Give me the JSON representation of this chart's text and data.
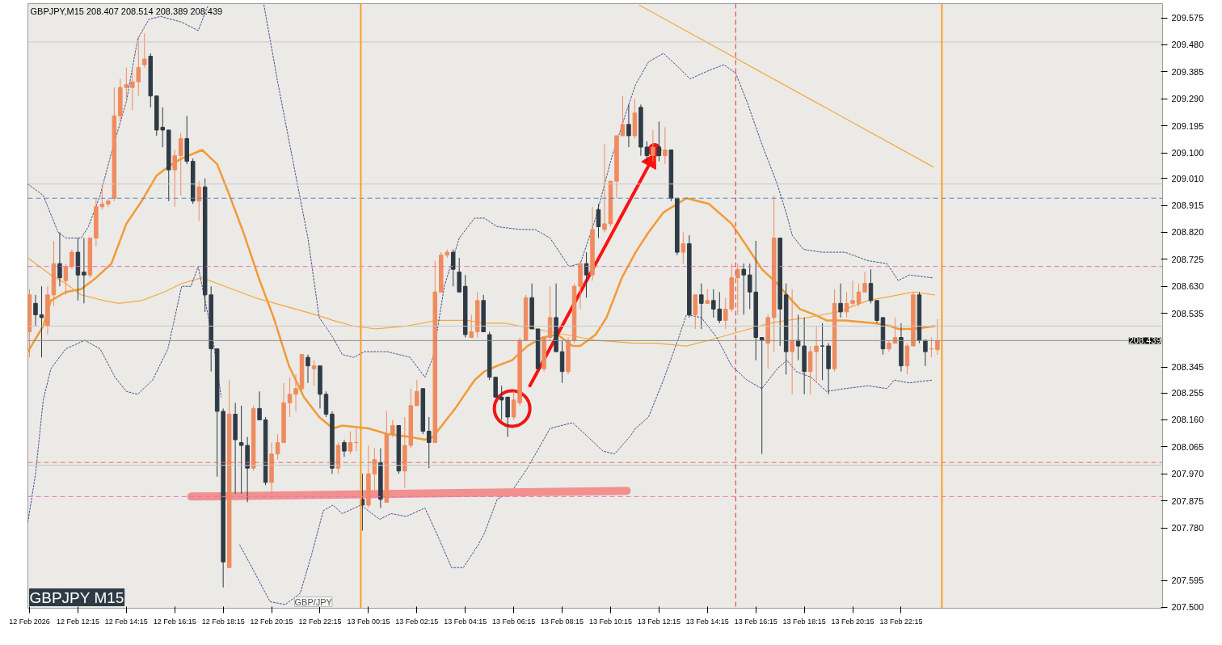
{
  "chart_data": {
    "type": "candlestick",
    "title": "GBPJPY,M15 208.407 208.514 208.389 208.439",
    "annotations": [
      "GBPJPY M15",
      "GBP/JPY"
    ],
    "grid": false,
    "xlim": [
      "2026-02-12T10:11",
      "2026-02-14T09:03"
    ],
    "ylim": [
      207.497,
      209.625
    ],
    "xticks": [
      {
        "value": "2026-02-12T10:15",
        "label": "12 Feb 2026"
      },
      {
        "value": "2026-02-12T12:15",
        "label": "12 Feb 12:15"
      },
      {
        "value": "2026-02-12T14:15",
        "label": "12 Feb 14:15"
      },
      {
        "value": "2026-02-12T16:15",
        "label": "12 Feb 16:15"
      },
      {
        "value": "2026-02-12T18:15",
        "label": "12 Feb 18:15"
      },
      {
        "value": "2026-02-12T20:15",
        "label": "12 Feb 20:15"
      },
      {
        "value": "2026-02-12T22:15",
        "label": "12 Feb 22:15"
      },
      {
        "value": "2026-02-13T00:15",
        "label": "13 Feb 00:15"
      },
      {
        "value": "2026-02-13T02:15",
        "label": "13 Feb 02:15"
      },
      {
        "value": "2026-02-13T04:15",
        "label": "13 Feb 04:15"
      },
      {
        "value": "2026-02-13T06:15",
        "label": "13 Feb 06:15"
      },
      {
        "value": "2026-02-13T08:15",
        "label": "13 Feb 08:15"
      },
      {
        "value": "2026-02-13T10:15",
        "label": "13 Feb 10:15"
      },
      {
        "value": "2026-02-13T12:15",
        "label": "13 Feb 12:15"
      },
      {
        "value": "2026-02-13T14:15",
        "label": "13 Feb 14:15"
      },
      {
        "value": "2026-02-13T16:15",
        "label": "13 Feb 16:15"
      },
      {
        "value": "2026-02-13T18:15",
        "label": "13 Feb 18:15"
      },
      {
        "value": "2026-02-13T20:15",
        "label": "13 Feb 20:15"
      },
      {
        "value": "2026-02-13T22:15",
        "label": "13 Feb 22:15"
      }
    ],
    "yticks": [
      {
        "value": 209.575,
        "label": "209.575"
      },
      {
        "value": 209.48,
        "label": "209.480"
      },
      {
        "value": 209.385,
        "label": "209.385"
      },
      {
        "value": 209.29,
        "label": "209.290"
      },
      {
        "value": 209.195,
        "label": "209.195"
      },
      {
        "value": 209.1,
        "label": "209.100"
      },
      {
        "value": 209.01,
        "label": "209.010"
      },
      {
        "value": 208.915,
        "label": "208.915"
      },
      {
        "value": 208.82,
        "label": "208.820"
      },
      {
        "value": 208.725,
        "label": "208.725"
      },
      {
        "value": 208.63,
        "label": "208.630"
      },
      {
        "value": 208.535,
        "label": "208.535"
      },
      {
        "value": 208.345,
        "label": "208.345"
      },
      {
        "value": 208.255,
        "label": "208.255"
      },
      {
        "value": 208.16,
        "label": "208.160"
      },
      {
        "value": 208.065,
        "label": "208.065"
      },
      {
        "value": 207.97,
        "label": "207.970"
      },
      {
        "value": 207.875,
        "label": "207.875"
      },
      {
        "value": 207.78,
        "label": "207.780"
      },
      {
        "value": 207.595,
        "label": "207.595"
      },
      {
        "value": 207.5,
        "label": "207.500"
      }
    ],
    "x": [
      "2026-02-12T10:15",
      "2026-02-12T10:30",
      "2026-02-12T10:45",
      "2026-02-12T11:00",
      "2026-02-12T11:15",
      "2026-02-12T11:30",
      "2026-02-12T11:45",
      "2026-02-12T12:00",
      "2026-02-12T12:15",
      "2026-02-12T12:30",
      "2026-02-12T12:45",
      "2026-02-12T13:00",
      "2026-02-12T13:15",
      "2026-02-12T13:30",
      "2026-02-12T13:45",
      "2026-02-12T14:00",
      "2026-02-12T14:15",
      "2026-02-12T14:30",
      "2026-02-12T14:45",
      "2026-02-12T15:00",
      "2026-02-12T15:15",
      "2026-02-12T15:30",
      "2026-02-12T15:45",
      "2026-02-12T16:00",
      "2026-02-12T16:15",
      "2026-02-12T16:30",
      "2026-02-12T16:45",
      "2026-02-12T17:00",
      "2026-02-12T17:15",
      "2026-02-12T17:30",
      "2026-02-12T17:45",
      "2026-02-12T18:00",
      "2026-02-12T18:15",
      "2026-02-12T18:30",
      "2026-02-12T18:45",
      "2026-02-12T19:00",
      "2026-02-12T19:15",
      "2026-02-12T19:30",
      "2026-02-12T19:45",
      "2026-02-12T20:00",
      "2026-02-12T20:15",
      "2026-02-12T20:30",
      "2026-02-12T20:45",
      "2026-02-12T21:00",
      "2026-02-12T21:15",
      "2026-02-12T21:30",
      "2026-02-12T21:45",
      "2026-02-12T22:00",
      "2026-02-12T22:15",
      "2026-02-12T22:30",
      "2026-02-12T22:45",
      "2026-02-12T23:00",
      "2026-02-12T23:15",
      "2026-02-12T23:30",
      "2026-02-12T23:45",
      "2026-02-13T00:00",
      "2026-02-13T00:15",
      "2026-02-13T00:30",
      "2026-02-13T00:45",
      "2026-02-13T01:00",
      "2026-02-13T01:15",
      "2026-02-13T01:30",
      "2026-02-13T01:45",
      "2026-02-13T02:00",
      "2026-02-13T02:15",
      "2026-02-13T02:30",
      "2026-02-13T02:45",
      "2026-02-13T03:00",
      "2026-02-13T03:15",
      "2026-02-13T03:30",
      "2026-02-13T03:45",
      "2026-02-13T04:00",
      "2026-02-13T04:15",
      "2026-02-13T04:30",
      "2026-02-13T04:45",
      "2026-02-13T05:00",
      "2026-02-13T05:15",
      "2026-02-13T05:30",
      "2026-02-13T05:45",
      "2026-02-13T06:00",
      "2026-02-13T06:15",
      "2026-02-13T06:30",
      "2026-02-13T06:45",
      "2026-02-13T07:00",
      "2026-02-13T07:15",
      "2026-02-13T07:30",
      "2026-02-13T07:45",
      "2026-02-13T08:00",
      "2026-02-13T08:15",
      "2026-02-13T08:30",
      "2026-02-13T08:45",
      "2026-02-13T09:00",
      "2026-02-13T09:15",
      "2026-02-13T09:30",
      "2026-02-13T09:45",
      "2026-02-13T10:00",
      "2026-02-13T10:15",
      "2026-02-13T10:30",
      "2026-02-13T10:45",
      "2026-02-13T11:00",
      "2026-02-13T11:15",
      "2026-02-13T11:30",
      "2026-02-13T11:45",
      "2026-02-13T12:00",
      "2026-02-13T12:15",
      "2026-02-13T12:30",
      "2026-02-13T12:45",
      "2026-02-13T13:00",
      "2026-02-13T13:15",
      "2026-02-13T13:30",
      "2026-02-13T13:45",
      "2026-02-13T14:00",
      "2026-02-13T14:15",
      "2026-02-13T14:30",
      "2026-02-13T14:45",
      "2026-02-13T15:00",
      "2026-02-13T15:15",
      "2026-02-13T15:30",
      "2026-02-13T15:45",
      "2026-02-13T16:00",
      "2026-02-13T16:15",
      "2026-02-13T16:30",
      "2026-02-13T16:45",
      "2026-02-13T17:00",
      "2026-02-13T17:15",
      "2026-02-13T17:30",
      "2026-02-13T17:45",
      "2026-02-13T18:00",
      "2026-02-13T18:15",
      "2026-02-13T18:30",
      "2026-02-13T18:45",
      "2026-02-13T19:00",
      "2026-02-13T19:15",
      "2026-02-13T19:30",
      "2026-02-13T19:45",
      "2026-02-13T20:00",
      "2026-02-13T20:15",
      "2026-02-13T20:30",
      "2026-02-13T20:45",
      "2026-02-13T21:00",
      "2026-02-13T21:15",
      "2026-02-13T21:30",
      "2026-02-13T21:45",
      "2026-02-13T22:00",
      "2026-02-13T22:15",
      "2026-02-13T22:30",
      "2026-02-13T22:45",
      "2026-02-13T23:00",
      "2026-02-13T23:15",
      "2026-02-13T23:30",
      "2026-02-13T23:45"
    ],
    "colors": [
      "#ef8b5e",
      "#2e3a45",
      "#2e3a45",
      "#ef8b5e",
      "#ef8b5e",
      "#2e3a45",
      "#ef8b5e",
      "#ef8b5e",
      "#2e3a45",
      "#2e3a45",
      "#ef8b5e",
      "#ef8b5e",
      "#ef8b5e",
      "#ef8b5e",
      "#ef8b5e",
      "#ef8b5e",
      "#ef8b5e",
      "#ef8b5e",
      "#ef8b5e",
      "#ef8b5e",
      "#2e3a45",
      "#2e3a45",
      "#2e3a45",
      "#2e3a45",
      "#ef8b5e",
      "#ef8b5e",
      "#2e3a45",
      "#2e3a45",
      "#ef8b5e",
      "#2e3a45",
      "#2e3a45",
      "#2e3a45",
      "#2e3a45",
      "#ef8b5e",
      "#2e3a45",
      "#2e3a45",
      "#2e3a45",
      "#ef8b5e",
      "#2e3a45",
      "#2e3a45",
      "#ef8b5e",
      "#ef8b5e",
      "#ef8b5e",
      "#ef8b5e",
      "#ef8b5e",
      "#ef8b5e",
      "#2e3a45",
      "#ef8b5e",
      "#2e3a45",
      "#2e3a45",
      "#2e3a45",
      "#ef8b5e",
      "#2e3a45",
      "#ef8b5e",
      "#ef8b5e",
      "#2e3a45",
      "#ef8b5e",
      "#ef8b5e",
      "#2e3a45",
      "#ef8b5e",
      "#ef8b5e",
      "#2e3a45",
      "#ef8b5e",
      "#ef8b5e",
      "#ef8b5e",
      "#2e3a45",
      "#2e3a45",
      "#ef8b5e",
      "#ef8b5e",
      "#ef8b5e",
      "#2e3a45",
      "#2e3a45",
      "#2e3a45",
      "#ef8b5e",
      "#ef8b5e",
      "#2e3a45",
      "#2e3a45",
      "#2e3a45",
      "#2e3a45",
      "#2e3a45",
      "#ef8b5e",
      "#ef8b5e",
      "#ef8b5e",
      "#2e3a45",
      "#2e3a45",
      "#ef8b5e",
      "#ef8b5e",
      "#2e3a45",
      "#2e3a45",
      "#ef8b5e",
      "#ef8b5e",
      "#ef8b5e",
      "#2e3a45",
      "#ef8b5e",
      "#2e3a45",
      "#ef8b5e",
      "#ef8b5e",
      "#ef8b5e",
      "#ef8b5e",
      "#2e3a45",
      "#ef8b5e",
      "#2e3a45",
      "#2e3a45",
      "#ef8b5e",
      "#2e3a45",
      "#ef8b5e",
      "#2e3a45",
      "#2e3a45",
      "#ef8b5e",
      "#2e3a45",
      "#ef8b5e",
      "#2e3a45",
      "#ef8b5e",
      "#2e3a45",
      "#2e3a45",
      "#ef8b5e",
      "#ef8b5e",
      "#ef8b5e",
      "#2e3a45",
      "#2e3a45",
      "#2e3a45",
      "#2e3a45",
      "#ef8b5e",
      "#ef8b5e",
      "#2e3a45",
      "#2e3a45",
      "#ef8b5e",
      "#2e3a45",
      "#2e3a45",
      "#ef8b5e",
      "#ef8b5e",
      "#2e3a45",
      "#2e3a45",
      "#ef8b5e",
      "#2e3a45",
      "#ef8b5e",
      "#ef8b5e",
      "#ef8b5e",
      "#ef8b5e",
      "#2e3a45",
      "#2e3a45",
      "#2e3a45",
      "#ef8b5e",
      "#ef8b5e",
      "#2e3a45",
      "#ef8b5e",
      "#ef8b5e",
      "#2e3a45",
      "#2e3a45",
      "#ef8b5e",
      "#ef8b5e"
    ],
    "ohlc": [
      [
        208.47,
        208.62,
        208.38,
        208.6
      ],
      [
        208.57,
        208.6,
        208.49,
        208.53
      ],
      [
        208.53,
        208.63,
        208.38,
        208.52
      ],
      [
        208.49,
        208.63,
        208.46,
        208.6
      ],
      [
        208.6,
        208.79,
        208.56,
        208.71
      ],
      [
        208.71,
        208.82,
        208.63,
        208.66
      ],
      [
        208.65,
        208.71,
        208.6,
        208.7
      ],
      [
        208.7,
        208.76,
        208.69,
        208.75
      ],
      [
        208.75,
        208.8,
        208.58,
        208.67
      ],
      [
        208.68,
        208.8,
        208.57,
        208.67
      ],
      [
        208.67,
        208.8,
        208.66,
        208.8
      ],
      [
        208.8,
        208.94,
        208.77,
        208.91
      ],
      [
        208.91,
        208.99,
        208.9,
        208.92
      ],
      [
        208.92,
        208.94,
        208.91,
        208.93
      ],
      [
        208.94,
        209.33,
        208.93,
        209.23
      ],
      [
        209.23,
        209.36,
        209.21,
        209.33
      ],
      [
        209.33,
        209.4,
        209.29,
        209.34
      ],
      [
        209.33,
        209.4,
        209.25,
        209.35
      ],
      [
        209.35,
        209.51,
        209.3,
        209.4
      ],
      [
        209.41,
        209.52,
        209.4,
        209.43
      ],
      [
        209.44,
        209.45,
        209.26,
        209.3
      ],
      [
        209.3,
        209.3,
        209.16,
        209.18
      ],
      [
        209.19,
        209.26,
        209.12,
        209.18
      ],
      [
        209.18,
        209.18,
        208.93,
        209.04
      ],
      [
        209.04,
        209.11,
        208.91,
        209.09
      ],
      [
        209.09,
        209.17,
        208.95,
        209.15
      ],
      [
        209.15,
        209.23,
        209.06,
        209.07
      ],
      [
        209.07,
        209.08,
        208.92,
        208.93
      ],
      [
        208.93,
        209.0,
        208.86,
        208.98
      ],
      [
        208.98,
        209.01,
        208.54,
        208.6
      ],
      [
        208.6,
        208.63,
        208.33,
        208.41
      ],
      [
        208.41,
        208.41,
        207.96,
        208.19
      ],
      [
        208.19,
        208.2,
        207.57,
        207.66
      ],
      [
        207.64,
        208.3,
        207.64,
        208.18
      ],
      [
        208.18,
        208.22,
        207.9,
        208.09
      ],
      [
        208.08,
        208.21,
        207.9,
        208.07
      ],
      [
        208.07,
        208.1,
        207.87,
        207.99
      ],
      [
        207.99,
        208.21,
        207.98,
        208.2
      ],
      [
        208.2,
        208.26,
        208.16,
        208.16
      ],
      [
        208.16,
        208.17,
        207.93,
        207.94
      ],
      [
        207.94,
        208.08,
        207.9,
        208.04
      ],
      [
        208.04,
        208.11,
        208.02,
        208.08
      ],
      [
        208.08,
        208.29,
        208.08,
        208.22
      ],
      [
        208.22,
        208.31,
        208.17,
        208.25
      ],
      [
        208.25,
        208.32,
        208.19,
        208.27
      ],
      [
        208.27,
        208.39,
        208.26,
        208.39
      ],
      [
        208.38,
        208.39,
        208.29,
        208.35
      ],
      [
        208.34,
        208.37,
        208.28,
        208.35
      ],
      [
        208.35,
        208.35,
        208.2,
        208.25
      ],
      [
        208.25,
        208.26,
        208.17,
        208.18
      ],
      [
        208.18,
        208.19,
        207.97,
        207.99
      ],
      [
        207.99,
        208.08,
        207.97,
        208.07
      ],
      [
        208.08,
        208.09,
        208.03,
        208.05
      ],
      [
        208.05,
        208.12,
        208.04,
        208.08
      ],
      [
        208.08,
        208.13,
        208.05,
        208.08
      ],
      [
        207.88,
        207.97,
        207.77,
        207.86
      ],
      [
        207.86,
        208.07,
        207.85,
        207.97
      ],
      [
        207.97,
        208.06,
        207.9,
        208.02
      ],
      [
        208.01,
        208.06,
        207.85,
        207.88
      ],
      [
        207.87,
        208.19,
        207.87,
        208.11
      ],
      [
        208.11,
        208.16,
        208.1,
        208.14
      ],
      [
        208.14,
        208.14,
        207.97,
        207.98
      ],
      [
        207.98,
        208.17,
        207.92,
        208.07
      ],
      [
        208.07,
        208.27,
        208.06,
        208.21
      ],
      [
        208.21,
        208.3,
        208.21,
        208.26
      ],
      [
        208.27,
        208.27,
        208.11,
        208.12
      ],
      [
        208.12,
        208.17,
        207.99,
        208.08
      ],
      [
        208.08,
        208.72,
        208.08,
        208.61
      ],
      [
        208.61,
        208.75,
        208.61,
        208.74
      ],
      [
        208.74,
        208.76,
        208.73,
        208.75
      ],
      [
        208.75,
        208.76,
        208.63,
        208.69
      ],
      [
        208.68,
        208.73,
        208.61,
        208.61
      ],
      [
        208.63,
        208.67,
        208.45,
        208.46
      ],
      [
        208.45,
        208.53,
        208.45,
        208.47
      ],
      [
        208.47,
        208.61,
        208.45,
        208.58
      ],
      [
        208.58,
        208.6,
        208.47,
        208.47
      ],
      [
        208.46,
        208.47,
        208.3,
        208.31
      ],
      [
        208.31,
        208.31,
        208.24,
        208.24
      ],
      [
        208.24,
        208.28,
        208.16,
        208.23
      ],
      [
        208.24,
        208.24,
        208.1,
        208.17
      ],
      [
        208.17,
        208.26,
        208.16,
        208.23
      ],
      [
        208.22,
        208.45,
        208.21,
        208.44
      ],
      [
        208.44,
        208.6,
        208.44,
        208.59
      ],
      [
        208.59,
        208.64,
        208.48,
        208.48
      ],
      [
        208.48,
        208.48,
        208.34,
        208.34
      ],
      [
        208.34,
        208.45,
        208.33,
        208.45
      ],
      [
        208.45,
        208.63,
        208.44,
        208.52
      ],
      [
        208.52,
        208.64,
        208.4,
        208.4
      ],
      [
        208.4,
        208.44,
        208.29,
        208.33
      ],
      [
        208.33,
        208.45,
        208.32,
        208.44
      ],
      [
        208.44,
        208.64,
        208.43,
        208.63
      ],
      [
        208.63,
        208.72,
        208.55,
        208.71
      ],
      [
        208.71,
        208.75,
        208.59,
        208.67
      ],
      [
        208.67,
        208.91,
        208.65,
        208.83
      ],
      [
        208.9,
        208.92,
        208.8,
        208.84
      ],
      [
        208.83,
        209.13,
        208.82,
        208.85
      ],
      [
        208.85,
        209.0,
        208.84,
        209.0
      ],
      [
        209.0,
        209.16,
        208.94,
        209.16
      ],
      [
        209.16,
        209.3,
        209.16,
        209.2
      ],
      [
        209.2,
        209.27,
        209.12,
        209.16
      ],
      [
        209.16,
        209.29,
        209.15,
        209.24
      ],
      [
        209.26,
        209.27,
        209.09,
        209.12
      ],
      [
        209.12,
        209.14,
        209.07,
        209.09
      ],
      [
        209.09,
        209.18,
        209.07,
        209.12
      ],
      [
        209.12,
        209.21,
        209.07,
        209.09
      ],
      [
        209.09,
        209.19,
        209.06,
        209.11
      ],
      [
        209.11,
        209.11,
        208.93,
        208.94
      ],
      [
        208.94,
        208.94,
        208.74,
        208.75
      ],
      [
        208.75,
        208.82,
        208.71,
        208.78
      ],
      [
        208.78,
        208.81,
        208.52,
        208.53
      ],
      [
        208.53,
        208.6,
        208.48,
        208.6
      ],
      [
        208.6,
        208.64,
        208.48,
        208.57
      ],
      [
        208.57,
        208.62,
        208.57,
        208.58
      ],
      [
        208.58,
        208.62,
        208.52,
        208.55
      ],
      [
        208.55,
        208.61,
        208.5,
        208.51
      ],
      [
        208.51,
        208.59,
        208.48,
        208.55
      ],
      [
        208.55,
        208.71,
        208.54,
        208.66
      ],
      [
        208.66,
        208.71,
        208.53,
        208.69
      ],
      [
        208.69,
        208.71,
        208.53,
        208.67
      ],
      [
        208.67,
        208.71,
        208.55,
        208.61
      ],
      [
        208.61,
        208.79,
        208.37,
        208.45
      ],
      [
        208.45,
        208.45,
        208.04,
        208.44
      ],
      [
        208.43,
        208.53,
        208.34,
        208.52
      ],
      [
        208.52,
        208.95,
        208.4,
        208.8
      ],
      [
        208.8,
        208.8,
        208.42,
        208.55
      ],
      [
        208.6,
        208.64,
        208.32,
        208.4
      ],
      [
        208.4,
        208.62,
        208.25,
        208.44
      ],
      [
        208.44,
        208.53,
        208.37,
        208.42
      ],
      [
        208.42,
        208.52,
        208.25,
        208.33
      ],
      [
        208.33,
        208.42,
        208.25,
        208.4
      ],
      [
        208.4,
        208.49,
        208.29,
        208.42
      ],
      [
        208.42,
        208.5,
        208.3,
        208.42
      ],
      [
        208.42,
        208.43,
        208.25,
        208.34
      ],
      [
        208.34,
        208.62,
        208.33,
        208.57
      ],
      [
        208.57,
        208.64,
        208.52,
        208.54
      ],
      [
        208.54,
        208.61,
        208.52,
        208.57
      ],
      [
        208.57,
        208.65,
        208.56,
        208.58
      ],
      [
        208.57,
        208.64,
        208.56,
        208.61
      ],
      [
        208.61,
        208.68,
        208.61,
        208.64
      ],
      [
        208.64,
        208.69,
        208.57,
        208.58
      ],
      [
        208.58,
        208.58,
        208.5,
        208.51
      ],
      [
        208.52,
        208.52,
        208.39,
        208.41
      ],
      [
        208.41,
        208.44,
        208.4,
        208.43
      ],
      [
        208.43,
        208.52,
        208.43,
        208.45
      ],
      [
        208.45,
        208.5,
        208.33,
        208.35
      ],
      [
        208.35,
        208.43,
        208.32,
        208.42
      ],
      [
        208.42,
        208.61,
        208.42,
        208.6
      ],
      [
        208.6,
        208.61,
        208.43,
        208.44
      ],
      [
        208.44,
        208.44,
        208.35,
        208.4
      ],
      [
        208.41,
        208.45,
        208.38,
        208.41
      ],
      [
        208.407,
        208.514,
        208.389,
        208.439
      ]
    ],
    "series": [
      {
        "type": "line",
        "color": "#f39a35",
        "line_style": "solid",
        "x": [
          "2026-02-12T10:11",
          "2026-02-12T10:49",
          "2026-02-12T11:08",
          "2026-02-12T11:45",
          "2026-02-12T12:23",
          "2026-02-12T13:00",
          "2026-02-12T13:38",
          "2026-02-12T14:15",
          "2026-02-12T14:53",
          "2026-02-12T15:30",
          "2026-02-12T16:08",
          "2026-02-12T16:32",
          "2026-02-12T17:23",
          "2026-02-12T18:00",
          "2026-02-12T18:28",
          "2026-02-12T19:05",
          "2026-02-12T19:43",
          "2026-02-12T20:20",
          "2026-02-12T20:58",
          "2026-02-12T21:35",
          "2026-02-12T22:13",
          "2026-02-12T22:47",
          "2026-02-12T23:10",
          "2026-02-13T00:15",
          "2026-02-13T01:02",
          "2026-02-13T01:58",
          "2026-02-13T02:35",
          "2026-02-13T02:55",
          "2026-02-13T03:50",
          "2026-02-13T04:38",
          "2026-02-13T05:02",
          "2026-02-13T05:34",
          "2026-02-13T06:11",
          "2026-02-13T06:49",
          "2026-02-13T07:26",
          "2026-02-13T08:04",
          "2026-02-13T08:41",
          "2026-02-13T09:00",
          "2026-02-13T09:38",
          "2026-02-13T10:05",
          "2026-02-13T10:43",
          "2026-02-13T11:17",
          "2026-02-13T11:49",
          "2026-02-13T12:26",
          "2026-02-13T13:23",
          "2026-02-13T14:19",
          "2026-02-13T15:15",
          "2026-02-13T15:53",
          "2026-02-13T16:30",
          "2026-02-13T17:08",
          "2026-02-13T17:32",
          "2026-02-13T18:04",
          "2026-02-13T18:41",
          "2026-02-13T19:10",
          "2026-02-13T19:56",
          "2026-02-13T21:11",
          "2026-02-13T21:49",
          "2026-02-13T22:08",
          "2026-02-13T22:45",
          "2026-02-13T23:38"
        ],
        "values": [
          208.4,
          208.49,
          208.58,
          208.61,
          208.62,
          208.66,
          208.71,
          208.85,
          208.93,
          209.02,
          209.06,
          209.08,
          209.11,
          209.06,
          208.96,
          208.82,
          208.66,
          208.52,
          208.35,
          208.24,
          208.17,
          208.13,
          208.14,
          208.13,
          208.11,
          208.1,
          208.09,
          208.1,
          208.2,
          208.3,
          208.33,
          208.35,
          208.37,
          208.42,
          208.45,
          208.46,
          208.42,
          208.42,
          208.46,
          208.52,
          208.66,
          208.75,
          208.82,
          208.89,
          208.94,
          208.92,
          208.85,
          208.77,
          208.69,
          208.64,
          208.6,
          208.55,
          208.53,
          208.51,
          208.51,
          208.5,
          208.49,
          208.48,
          208.48,
          208.49
        ]
      },
      {
        "type": "line",
        "color": "#f5a83c",
        "line_style": "solid",
        "x": [
          "2026-02-12T10:11",
          "2026-02-12T11:08",
          "2026-02-12T11:45",
          "2026-02-12T12:23",
          "2026-02-12T13:19",
          "2026-02-12T13:56",
          "2026-02-12T14:53",
          "2026-02-12T15:49",
          "2026-02-12T16:32",
          "2026-02-12T17:23",
          "2026-02-12T18:19",
          "2026-02-12T19:34",
          "2026-02-12T20:49",
          "2026-02-12T22:04",
          "2026-02-12T22:47",
          "2026-02-12T23:38",
          "2026-02-13T00:34",
          "2026-02-13T01:49",
          "2026-02-13T03:04",
          "2026-02-13T04:19",
          "2026-02-13T05:02",
          "2026-02-13T05:53",
          "2026-02-13T07:08",
          "2026-02-13T08:23",
          "2026-02-13T09:38",
          "2026-02-13T11:17",
          "2026-02-13T12:08",
          "2026-02-13T13:23",
          "2026-02-13T14:19",
          "2026-02-13T15:34",
          "2026-02-13T16:49",
          "2026-02-13T17:32",
          "2026-02-13T18:23",
          "2026-02-13T19:38",
          "2026-02-13T20:53",
          "2026-02-13T22:08",
          "2026-02-13T22:45",
          "2026-02-13T23:38"
        ],
        "values": [
          208.73,
          208.67,
          208.64,
          208.6,
          208.58,
          208.57,
          208.58,
          208.61,
          208.64,
          208.66,
          208.63,
          208.59,
          208.56,
          208.53,
          208.51,
          208.49,
          208.48,
          208.49,
          208.51,
          208.51,
          208.5,
          208.5,
          208.48,
          208.46,
          208.44,
          208.43,
          208.43,
          208.42,
          208.44,
          208.47,
          208.5,
          208.51,
          208.52,
          208.54,
          208.58,
          208.6,
          208.61,
          208.6
        ]
      },
      {
        "type": "line",
        "color": "#4b4b8f",
        "line_style": "dotted",
        "x": [
          "2026-02-12T10:11",
          "2026-02-12T10:49",
          "2026-02-12T11:26",
          "2026-02-12T11:45",
          "2026-02-12T12:23",
          "2026-02-12T12:41",
          "2026-02-12T13:10",
          "2026-02-12T13:38",
          "2026-02-12T14:15",
          "2026-02-12T14:43",
          "2026-02-12T15:11",
          "2026-02-12T15:40",
          "2026-02-12T16:32",
          "2026-02-12T17:13",
          "2026-02-12T17:38",
          "2026-02-12T18:47",
          "2026-02-12T19:56",
          "2026-02-12T20:30",
          "2026-02-12T21:08",
          "2026-02-12T21:45",
          "2026-02-12T22:13",
          "2026-02-12T22:47",
          "2026-02-12T23:10",
          "2026-02-12T23:38",
          "2026-02-13T00:05",
          "2026-02-13T01:02",
          "2026-02-13T01:58",
          "2026-02-13T02:35",
          "2026-02-13T02:55",
          "2026-02-13T03:23",
          "2026-02-13T04:00",
          "2026-02-13T04:38",
          "2026-02-13T05:02",
          "2026-02-13T05:34",
          "2026-02-13T06:30",
          "2026-02-13T07:08",
          "2026-02-13T07:45",
          "2026-02-13T08:32",
          "2026-02-13T09:00",
          "2026-02-13T09:38",
          "2026-02-13T10:15",
          "2026-02-13T10:53",
          "2026-02-13T11:17",
          "2026-02-13T11:49",
          "2026-02-13T12:26",
          "2026-02-13T13:04",
          "2026-02-13T13:32",
          "2026-02-13T14:19",
          "2026-02-13T14:56",
          "2026-02-13T15:25",
          "2026-02-13T15:53",
          "2026-02-13T16:30",
          "2026-02-13T17:08",
          "2026-02-13T17:32",
          "2026-02-13T17:45",
          "2026-02-13T18:13",
          "2026-02-13T19:00",
          "2026-02-13T19:56",
          "2026-02-13T20:53",
          "2026-02-13T21:40",
          "2026-02-13T22:08",
          "2026-02-13T22:35",
          "2026-02-13T23:32"
        ],
        "values": [
          208.99,
          208.95,
          208.82,
          208.8,
          208.8,
          208.84,
          208.95,
          209.1,
          209.28,
          209.5,
          209.57,
          209.58,
          209.56,
          209.53,
          209.62,
          null,
          209.62,
          209.35,
          209.07,
          208.8,
          208.52,
          208.45,
          208.39,
          208.38,
          208.4,
          208.4,
          208.38,
          208.31,
          208.38,
          208.63,
          208.8,
          208.87,
          208.87,
          208.84,
          208.83,
          208.83,
          208.8,
          208.7,
          208.71,
          208.87,
          209.07,
          209.24,
          209.34,
          209.42,
          209.45,
          209.4,
          209.36,
          209.39,
          209.41,
          209.38,
          209.28,
          209.13,
          208.99,
          208.88,
          208.81,
          208.76,
          208.75,
          208.75,
          208.72,
          208.71,
          208.65,
          208.67,
          208.66
        ]
      },
      {
        "type": "line",
        "color": "#4b4b8f",
        "line_style": "dotted",
        "x": [
          "2026-02-12T10:11",
          "2026-02-12T10:30",
          "2026-02-12T10:49",
          "2026-02-12T11:08",
          "2026-02-12T11:45",
          "2026-02-12T12:32",
          "2026-02-12T13:10",
          "2026-02-12T13:47",
          "2026-02-12T14:15",
          "2026-02-12T14:43",
          "2026-02-12T15:20",
          "2026-02-12T15:58",
          "2026-02-12T16:32",
          "2026-02-12T16:55",
          "2026-02-12T17:13",
          "2026-02-12T17:50",
          "2026-02-12T18:10",
          "2026-02-12T18:28",
          "2026-02-12T18:56",
          "2026-02-12T19:34",
          "2026-02-12T20:11",
          "2026-02-12T20:49",
          "2026-02-12T21:26",
          "2026-02-12T21:55",
          "2026-02-12T22:23",
          "2026-02-12T22:47",
          "2026-02-12T23:10",
          "2026-02-12T23:56",
          "2026-02-13T00:43",
          "2026-02-13T01:11",
          "2026-02-13T01:49",
          "2026-02-13T02:35",
          "2026-02-13T03:04",
          "2026-02-13T03:41",
          "2026-02-13T04:10",
          "2026-02-13T04:47",
          "2026-02-13T05:02",
          "2026-02-13T05:34",
          "2026-02-13T06:11",
          "2026-02-13T06:49",
          "2026-02-13T07:45",
          "2026-02-13T08:41",
          "2026-02-13T09:19",
          "2026-02-13T09:56",
          "2026-02-13T10:25",
          "2026-02-13T11:02",
          "2026-02-13T11:17",
          "2026-02-13T11:49",
          "2026-02-13T12:26",
          "2026-02-13T13:04",
          "2026-02-13T13:23",
          "2026-02-13T14:00",
          "2026-02-13T14:38",
          "2026-02-13T15:15",
          "2026-02-13T15:53",
          "2026-02-13T16:30",
          "2026-02-13T17:08",
          "2026-02-13T17:32",
          "2026-02-13T17:55",
          "2026-02-13T18:32",
          "2026-02-13T19:10",
          "2026-02-13T19:56",
          "2026-02-13T20:53",
          "2026-02-13T21:40",
          "2026-02-13T21:58",
          "2026-02-13T22:35",
          "2026-02-13T23:32"
        ],
        "values": [
          207.8,
          207.97,
          208.23,
          208.34,
          208.41,
          208.44,
          208.41,
          208.31,
          208.26,
          208.25,
          208.3,
          208.41,
          208.63,
          208.63,
          208.7,
          208.44,
          208.24,
          null,
          207.72,
          207.62,
          207.52,
          207.51,
          207.55,
          207.69,
          207.84,
          207.86,
          207.83,
          207.86,
          207.81,
          207.83,
          207.82,
          207.85,
          207.76,
          207.64,
          207.64,
          207.72,
          207.76,
          207.88,
          207.91,
          207.99,
          208.13,
          208.15,
          208.1,
          208.05,
          208.04,
          208.1,
          208.13,
          208.17,
          208.3,
          208.45,
          208.53,
          208.52,
          208.45,
          208.35,
          208.3,
          208.27,
          208.34,
          208.37,
          208.33,
          208.31,
          208.26,
          208.27,
          208.28,
          208.27,
          208.3,
          208.29,
          208.3
        ]
      },
      {
        "type": "line",
        "color": "#f5a83c",
        "line_style": "solid",
        "x": [
          "2026-02-13T11:26",
          "2026-02-13T23:35"
        ],
        "values": [
          209.62,
          209.05
        ]
      },
      {
        "type": "line",
        "color": "#f29090",
        "line_style": "solid",
        "x": [
          "2026-02-12T16:56",
          "2026-02-13T10:55"
        ],
        "values": [
          207.89,
          207.91
        ]
      },
      {
        "type": "line",
        "color": "#ff1010",
        "line_style": "solid",
        "marker": "triangle",
        "x": [
          "2026-02-13T06:55",
          "2026-02-13T11:55"
        ],
        "values": [
          208.28,
          209.07
        ]
      },
      {
        "type": "scatter",
        "color": "#f01515",
        "marker": "circle",
        "line_style": "solid",
        "x": [
          "2026-02-13T06:11"
        ],
        "values": [
          208.2
        ]
      },
      {
        "type": "scatter",
        "color": "#f01515",
        "marker": "circle",
        "x": [
          "2026-02-13T12:04"
        ],
        "values": [
          209.11
        ]
      }
    ],
    "ref_lines": [
      {
        "axis": "y",
        "value": 208.94,
        "color": "#5b87c5",
        "line_style": "dashed"
      },
      {
        "axis": "y",
        "value": 208.7,
        "color": "#e870c0",
        "line_style": "dashed"
      },
      {
        "axis": "y",
        "value": 208.01,
        "color": "#d9776a",
        "line_style": "dashed"
      },
      {
        "axis": "y",
        "value": 207.89,
        "color": "#e870c0",
        "line_style": "dashed"
      },
      {
        "axis": "y",
        "value": 209.49,
        "color": "#c8c8c8",
        "line_style": "solid"
      },
      {
        "axis": "y",
        "value": 208.99,
        "color": "#c8c8c8",
        "line_style": "solid"
      },
      {
        "axis": "y",
        "value": 208.49,
        "color": "#c8c8c8",
        "line_style": "solid"
      },
      {
        "axis": "y",
        "value": 208.0,
        "color": "#c8c8c8",
        "line_style": "solid"
      },
      {
        "axis": "y",
        "value": 208.439,
        "color": "#8c8c8c",
        "line_style": "solid",
        "label": "208.439"
      },
      {
        "axis": "x",
        "value": "2026-02-12T23:56",
        "color": "#f5a02a",
        "line_style": "solid"
      },
      {
        "axis": "x",
        "value": "2026-02-13T23:56",
        "color": "#f5a02a",
        "line_style": "solid"
      },
      {
        "axis": "x",
        "value": "2026-02-13T15:25",
        "color": "#e03030",
        "line_style": "dashed"
      }
    ]
  }
}
